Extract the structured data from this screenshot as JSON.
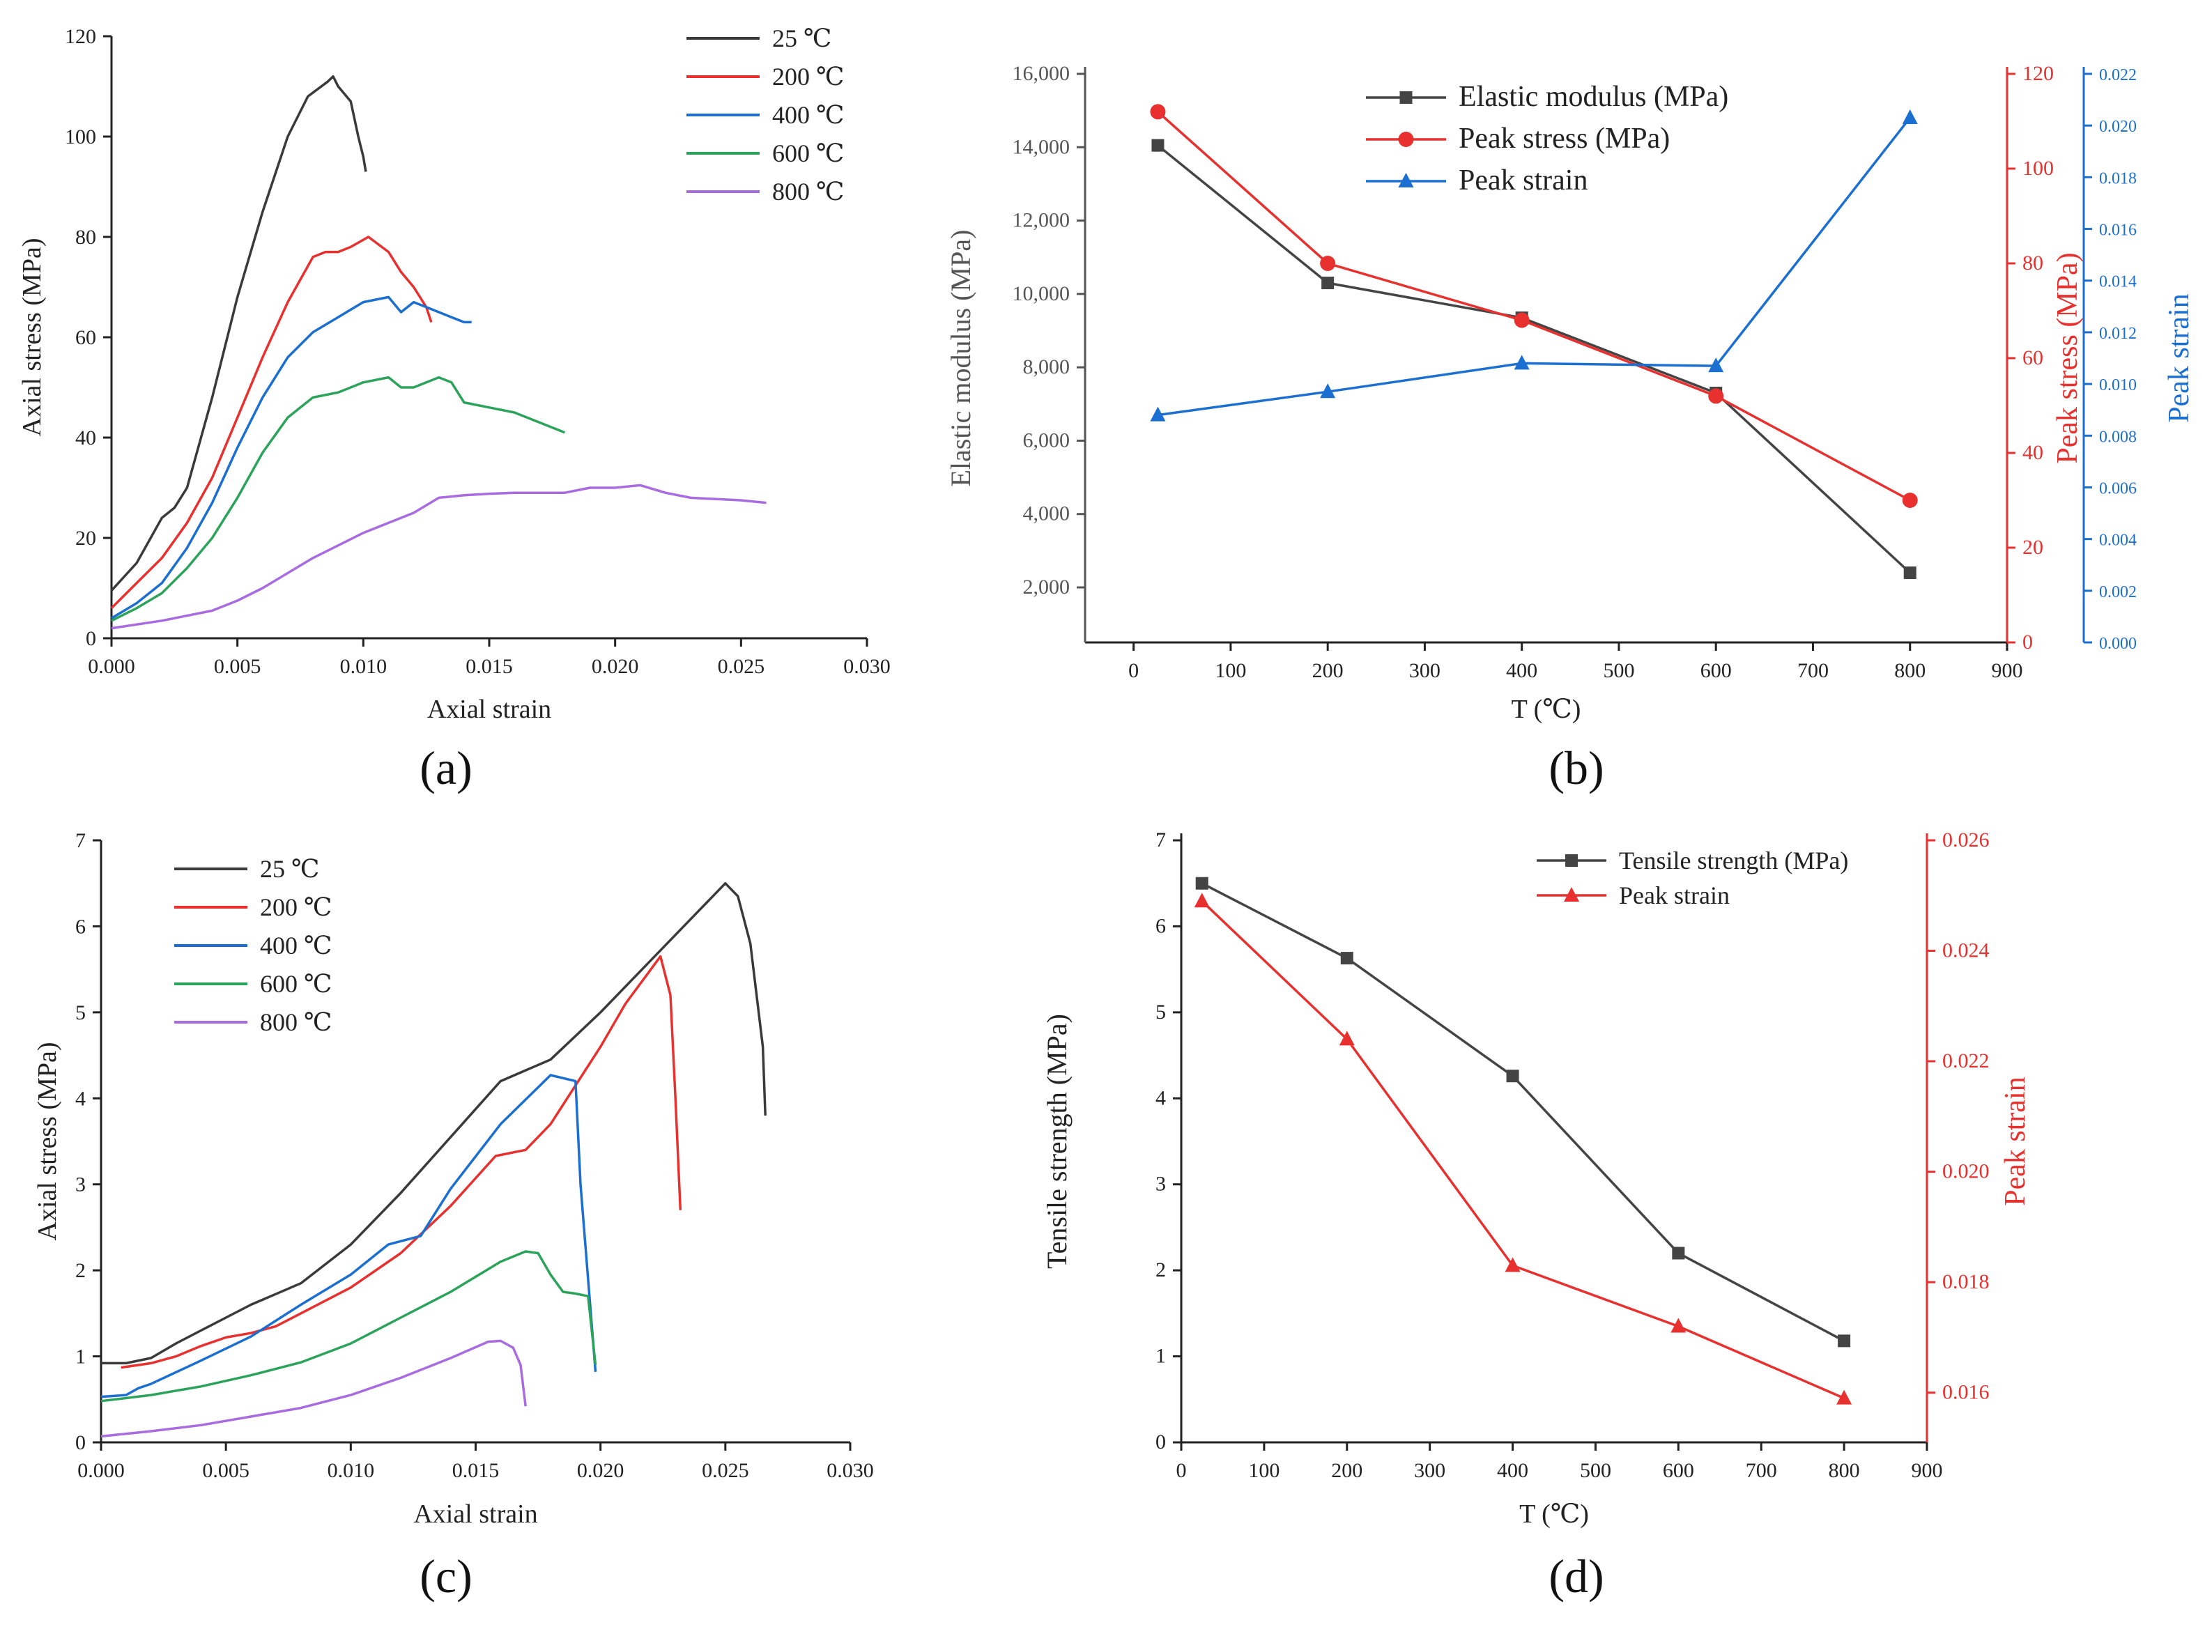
{
  "figure": {
    "panel_labels": [
      "(a)",
      "(b)",
      "(c)",
      "(d)"
    ]
  },
  "chart_data": [
    {
      "id": "a",
      "type": "line",
      "xlabel": "Axial strain",
      "ylabel": "Axial stress (MPa)",
      "xlim": [
        0,
        0.03
      ],
      "ylim": [
        0,
        120
      ],
      "xticks": [
        "0.000",
        "0.005",
        "0.010",
        "0.015",
        "0.020",
        "0.025",
        "0.030"
      ],
      "yticks": [
        "0",
        "20",
        "40",
        "60",
        "80",
        "100",
        "120"
      ],
      "legend_position": "top-right",
      "grid": false,
      "series": [
        {
          "name": "25 ℃",
          "color": "#3a3a3a",
          "x": [
            0.0,
            0.001,
            0.002,
            0.0025,
            0.003,
            0.004,
            0.0045,
            0.005,
            0.006,
            0.007,
            0.0078,
            0.0086,
            0.0088,
            0.009,
            0.0095,
            0.0098,
            0.01,
            0.0101
          ],
          "y": [
            9.5,
            15,
            24,
            26,
            30,
            48,
            58,
            68,
            85,
            100,
            108,
            111,
            112,
            110,
            107,
            100,
            96,
            93
          ]
        },
        {
          "name": "200 ℃",
          "color": "#e8312f",
          "x": [
            0.0,
            0.001,
            0.002,
            0.003,
            0.004,
            0.005,
            0.006,
            0.007,
            0.008,
            0.0085,
            0.009,
            0.0095,
            0.0102,
            0.011,
            0.0115,
            0.012,
            0.0125,
            0.0127
          ],
          "y": [
            6,
            11,
            16,
            23,
            32,
            44,
            56,
            67,
            76,
            77,
            77,
            78,
            80,
            77,
            73,
            70,
            66,
            63
          ]
        },
        {
          "name": "400 ℃",
          "color": "#1b6fd1",
          "x": [
            0.0,
            0.001,
            0.002,
            0.003,
            0.004,
            0.005,
            0.006,
            0.007,
            0.008,
            0.009,
            0.01,
            0.011,
            0.0115,
            0.012,
            0.0125,
            0.013,
            0.0135,
            0.014,
            0.0143
          ],
          "y": [
            4,
            7,
            11,
            18,
            27,
            38,
            48,
            56,
            61,
            64,
            67,
            68,
            65,
            67,
            66,
            65,
            64,
            63,
            63
          ]
        },
        {
          "name": "600 ℃",
          "color": "#2ca35a",
          "x": [
            0.0,
            0.001,
            0.002,
            0.003,
            0.004,
            0.005,
            0.006,
            0.007,
            0.0075,
            0.008,
            0.009,
            0.01,
            0.011,
            0.0115,
            0.012,
            0.013,
            0.0135,
            0.014,
            0.015,
            0.016,
            0.017,
            0.018
          ],
          "y": [
            3.5,
            6,
            9,
            14,
            20,
            28,
            37,
            44,
            46,
            48,
            49,
            51,
            52,
            50,
            50,
            52,
            51,
            47,
            46,
            45,
            43,
            41
          ]
        },
        {
          "name": "800 ℃",
          "color": "#a86be0",
          "x": [
            0.0,
            0.002,
            0.004,
            0.005,
            0.006,
            0.008,
            0.01,
            0.012,
            0.013,
            0.014,
            0.015,
            0.016,
            0.018,
            0.019,
            0.02,
            0.021,
            0.022,
            0.023,
            0.025,
            0.026
          ],
          "y": [
            2,
            3.5,
            5.5,
            7.5,
            10,
            16,
            21,
            25,
            28,
            28.5,
            28.8,
            29,
            29,
            30,
            30,
            30.5,
            29,
            28,
            27.5,
            27
          ]
        }
      ]
    },
    {
      "id": "b",
      "type": "line",
      "xlabel": "T (℃)",
      "xlim": [
        -50,
        900
      ],
      "xticks": [
        "0",
        "100",
        "200",
        "300",
        "400",
        "500",
        "600",
        "700",
        "800",
        "900"
      ],
      "legend_position": "top-center",
      "grid": false,
      "axes": [
        {
          "label": "Elastic modulus (MPa)",
          "side": "left",
          "color": "#555555",
          "lim": [
            500,
            16000
          ],
          "ticks": [
            "2,000",
            "4,000",
            "6,000",
            "8,000",
            "10,000",
            "12,000",
            "14,000",
            "16,000"
          ]
        },
        {
          "label": "Peak stress (MPa)",
          "side": "right",
          "color": "#e8312f",
          "lim": [
            0,
            120
          ],
          "ticks": [
            "0",
            "20",
            "40",
            "60",
            "80",
            "100",
            "120"
          ]
        },
        {
          "label": "Peak strain",
          "side": "right-outer",
          "color": "#1b6fd1",
          "lim": [
            0,
            0.022
          ],
          "ticks": [
            "0.000",
            "0.002",
            "0.004",
            "0.006",
            "0.008",
            "0.010",
            "0.012",
            "0.014",
            "0.016",
            "0.018",
            "0.020",
            "0.022"
          ]
        }
      ],
      "x": [
        25,
        200,
        400,
        600,
        800
      ],
      "series": [
        {
          "name": "Elastic modulus (MPa)",
          "axis": 0,
          "color": "#444444",
          "marker": "square",
          "values": [
            14050,
            10300,
            9350,
            7300,
            2400
          ]
        },
        {
          "name": "Peak stress (MPa)",
          "axis": 1,
          "color": "#e8312f",
          "marker": "circle",
          "values": [
            112,
            80,
            68,
            52,
            30
          ]
        },
        {
          "name": "Peak strain",
          "axis": 2,
          "color": "#1b6fd1",
          "marker": "triangle",
          "values": [
            0.0088,
            0.0097,
            0.0108,
            0.0107,
            0.0203
          ]
        }
      ]
    },
    {
      "id": "c",
      "type": "line",
      "xlabel": "Axial strain",
      "ylabel": "Axial stress (MPa)",
      "xlim": [
        0,
        0.03
      ],
      "ylim": [
        0,
        7
      ],
      "xticks": [
        "0.000",
        "0.005",
        "0.010",
        "0.015",
        "0.020",
        "0.025",
        "0.030"
      ],
      "yticks": [
        "0",
        "1",
        "2",
        "3",
        "4",
        "5",
        "6",
        "7"
      ],
      "legend_position": "top-left",
      "grid": false,
      "series": [
        {
          "name": "25 ℃",
          "color": "#3a3a3a",
          "x": [
            0.0,
            0.001,
            0.002,
            0.003,
            0.004,
            0.005,
            0.006,
            0.008,
            0.01,
            0.012,
            0.014,
            0.016,
            0.018,
            0.02,
            0.022,
            0.024,
            0.025,
            0.0255,
            0.026,
            0.0265,
            0.0266
          ],
          "y": [
            0.92,
            0.92,
            0.98,
            1.15,
            1.3,
            1.45,
            1.6,
            1.85,
            2.3,
            2.9,
            3.55,
            4.2,
            4.45,
            5.0,
            5.6,
            6.2,
            6.5,
            6.35,
            5.8,
            4.6,
            3.8
          ]
        },
        {
          "name": "200 ℃",
          "color": "#e8312f",
          "x": [
            0.0008,
            0.002,
            0.003,
            0.004,
            0.005,
            0.006,
            0.007,
            0.008,
            0.01,
            0.012,
            0.014,
            0.0158,
            0.017,
            0.018,
            0.019,
            0.02,
            0.021,
            0.0224,
            0.0228,
            0.023,
            0.0232
          ],
          "y": [
            0.87,
            0.92,
            1.0,
            1.12,
            1.22,
            1.27,
            1.35,
            1.5,
            1.8,
            2.2,
            2.75,
            3.33,
            3.4,
            3.7,
            4.15,
            4.6,
            5.1,
            5.65,
            5.2,
            4.0,
            2.7
          ]
        },
        {
          "name": "400 ℃",
          "color": "#1b6fd1",
          "x": [
            0.0,
            0.001,
            0.0015,
            0.002,
            0.004,
            0.006,
            0.008,
            0.01,
            0.0115,
            0.0128,
            0.014,
            0.016,
            0.018,
            0.019,
            0.0192,
            0.0198
          ],
          "y": [
            0.53,
            0.55,
            0.63,
            0.68,
            0.95,
            1.23,
            1.6,
            1.95,
            2.3,
            2.4,
            2.95,
            3.7,
            4.27,
            4.2,
            3.0,
            0.82
          ]
        },
        {
          "name": "600 ℃",
          "color": "#2ca35a",
          "x": [
            0.0,
            0.002,
            0.004,
            0.006,
            0.008,
            0.01,
            0.012,
            0.014,
            0.016,
            0.017,
            0.0175,
            0.018,
            0.0185,
            0.019,
            0.0195,
            0.0198
          ],
          "y": [
            0.48,
            0.55,
            0.65,
            0.78,
            0.93,
            1.15,
            1.45,
            1.75,
            2.1,
            2.22,
            2.2,
            1.95,
            1.75,
            1.73,
            1.7,
            0.9
          ]
        },
        {
          "name": "800 ℃",
          "color": "#a86be0",
          "x": [
            0.0,
            0.002,
            0.004,
            0.006,
            0.008,
            0.01,
            0.012,
            0.014,
            0.0155,
            0.016,
            0.0165,
            0.0168,
            0.017
          ],
          "y": [
            0.07,
            0.13,
            0.2,
            0.3,
            0.4,
            0.55,
            0.75,
            0.98,
            1.17,
            1.18,
            1.1,
            0.9,
            0.42
          ]
        }
      ]
    },
    {
      "id": "d",
      "type": "line",
      "xlabel": "T (℃)",
      "xlim": [
        0,
        900
      ],
      "xticks": [
        "0",
        "100",
        "200",
        "300",
        "400",
        "500",
        "600",
        "700",
        "800",
        "900"
      ],
      "legend_position": "top-right",
      "grid": false,
      "axes": [
        {
          "label": "Tensile strength (MPa)",
          "side": "left",
          "color": "#222222",
          "lim": [
            0,
            7
          ],
          "ticks": [
            "0",
            "1",
            "2",
            "3",
            "4",
            "5",
            "6",
            "7"
          ]
        },
        {
          "label": "Peak strain",
          "side": "right",
          "color": "#e8312f",
          "lim": [
            0.0151,
            0.026
          ],
          "ticks": [
            "0.016",
            "0.018",
            "0.020",
            "0.022",
            "0.024",
            "0.026"
          ]
        }
      ],
      "x": [
        25,
        200,
        400,
        600,
        800
      ],
      "series": [
        {
          "name": "Tensile strength (MPa)",
          "axis": 0,
          "color": "#444444",
          "marker": "square",
          "values": [
            6.5,
            5.63,
            4.26,
            2.2,
            1.18
          ]
        },
        {
          "name": "Peak strain",
          "axis": 1,
          "color": "#e8312f",
          "marker": "triangle",
          "values": [
            0.0249,
            0.0224,
            0.0183,
            0.0172,
            0.0159
          ]
        }
      ]
    }
  ]
}
